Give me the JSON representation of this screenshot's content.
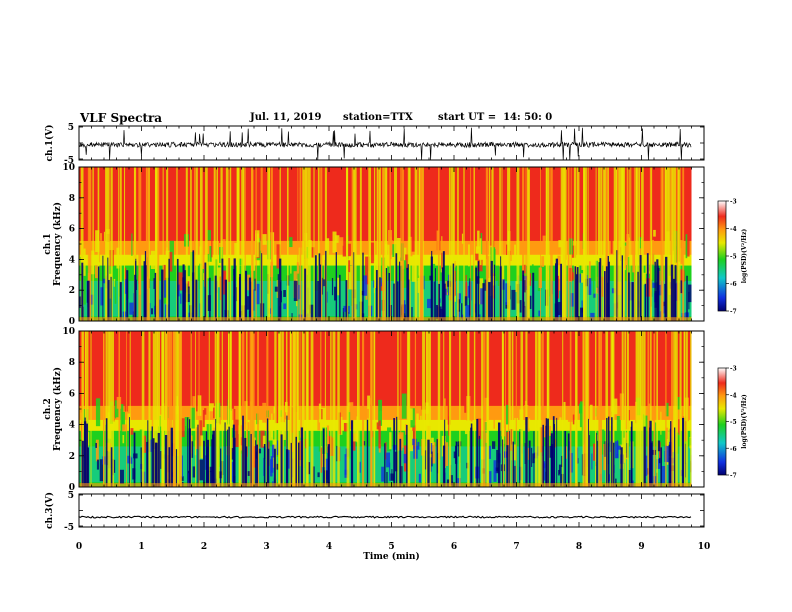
{
  "header": {
    "title": "VLF Spectra",
    "date": "Jul. 11, 2019",
    "station": "station=TTX",
    "start_time": "start UT =  14: 50: 0"
  },
  "chart_data": [
    {
      "type": "line",
      "panel": "ch1-waveform",
      "ylabel": "ch.1(V)",
      "yticks": [
        "5",
        "-5"
      ],
      "ylim": [
        -5,
        5
      ],
      "xlim": [
        0,
        10
      ],
      "description_note": "noisy waveform centered near -0.5 V with frequent impulsive spikes"
    },
    {
      "type": "heatmap",
      "panel": "ch1-spectrogram",
      "ylabel": [
        "ch.1",
        "Frequency (kHz)"
      ],
      "yticks": [
        "0",
        "2",
        "4",
        "6",
        "8",
        "10"
      ],
      "ylim": [
        0,
        10
      ],
      "xlim": [
        0,
        10
      ],
      "colorbar": {
        "label": "log(PSD)(V²/Hz)",
        "ticks": [
          "-3",
          "-4",
          "-5",
          "-6",
          "-7"
        ],
        "range": [
          -7,
          -3
        ]
      }
    },
    {
      "type": "heatmap",
      "panel": "ch2-spectrogram",
      "ylabel": [
        "ch.2",
        "Frequency (kHz)"
      ],
      "yticks": [
        "0",
        "2",
        "4",
        "6",
        "8",
        "10"
      ],
      "ylim": [
        0,
        10
      ],
      "xlim": [
        0,
        10
      ],
      "colorbar": {
        "label": "log(PSD)(V²/Hz)",
        "ticks": [
          "-3",
          "-4",
          "-5",
          "-6",
          "-7"
        ],
        "range": [
          -7,
          -3
        ]
      }
    },
    {
      "type": "line",
      "panel": "ch3-waveform",
      "ylabel": "ch.3(V)",
      "yticks": [
        "5",
        "-5"
      ],
      "ylim": [
        -5,
        5
      ],
      "xlim": [
        0,
        10
      ],
      "level_volts": -2.0
    }
  ],
  "x_axis": {
    "label": "Time (min)",
    "ticks": [
      "0",
      "1",
      "2",
      "3",
      "4",
      "5",
      "6",
      "7",
      "8",
      "9",
      "10"
    ],
    "data_end_min": 9.8
  },
  "colors": {
    "red": "#ee2a1c",
    "orange": "#ff9a10",
    "yellow": "#e8e800",
    "green": "#1ed01e",
    "cyan": "#10c8c8",
    "blue": "#1030e0",
    "navy": "#000070"
  }
}
